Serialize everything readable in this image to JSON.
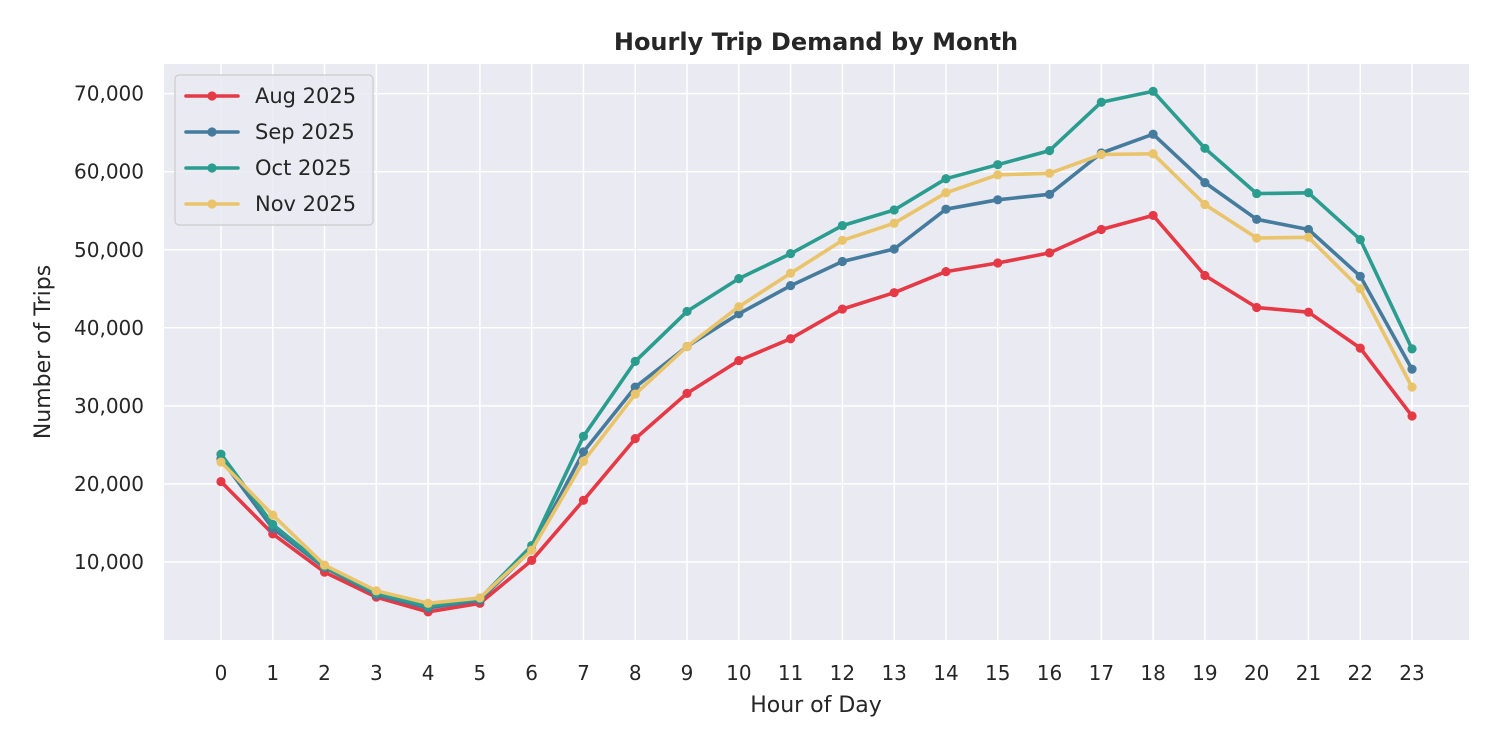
{
  "chart_data": {
    "type": "line",
    "title": "Hourly Trip Demand by Month",
    "xlabel": "Hour of Day",
    "ylabel": "Number of Trips",
    "x": [
      0,
      1,
      2,
      3,
      4,
      5,
      6,
      7,
      8,
      9,
      10,
      11,
      12,
      13,
      14,
      15,
      16,
      17,
      18,
      19,
      20,
      21,
      22,
      23
    ],
    "xlim": [
      -1.1,
      24.1
    ],
    "ylim": [
      0,
      73800
    ],
    "yticks": [
      10000,
      20000,
      30000,
      40000,
      50000,
      60000,
      70000
    ],
    "ytick_labels": [
      "10,000",
      "20,000",
      "30,000",
      "40,000",
      "50,000",
      "60,000",
      "70,000"
    ],
    "grid": true,
    "legend_position": "top-left",
    "series": [
      {
        "name": "Aug 2025",
        "color": "#e63946",
        "values": [
          20300,
          13600,
          8700,
          5500,
          3600,
          4700,
          10200,
          17900,
          25800,
          31600,
          35800,
          38600,
          42400,
          44500,
          47200,
          48300,
          49600,
          52600,
          54400,
          46700,
          42600,
          42000,
          37400,
          28700
        ]
      },
      {
        "name": "Sep 2025",
        "color": "#457b9d",
        "values": [
          23200,
          14300,
          9300,
          5800,
          4100,
          5100,
          11600,
          24100,
          32400,
          37600,
          41800,
          45400,
          48500,
          50100,
          55200,
          56400,
          57100,
          62400,
          64800,
          58600,
          53900,
          52600,
          46600,
          34700
        ]
      },
      {
        "name": "Oct 2025",
        "color": "#2a9d8f",
        "values": [
          23800,
          14800,
          9400,
          6000,
          4300,
          5300,
          12100,
          26100,
          35700,
          42100,
          46300,
          49500,
          53100,
          55100,
          59100,
          60900,
          62700,
          68900,
          70300,
          63000,
          57200,
          57300,
          51300,
          37300
        ]
      },
      {
        "name": "Nov 2025",
        "color": "#e9c46a",
        "values": [
          22800,
          16000,
          9600,
          6300,
          4700,
          5400,
          11500,
          22900,
          31500,
          37600,
          42700,
          47000,
          51200,
          53400,
          57300,
          59600,
          59800,
          62200,
          62300,
          55800,
          51500,
          51600,
          45000,
          32400
        ]
      }
    ]
  }
}
